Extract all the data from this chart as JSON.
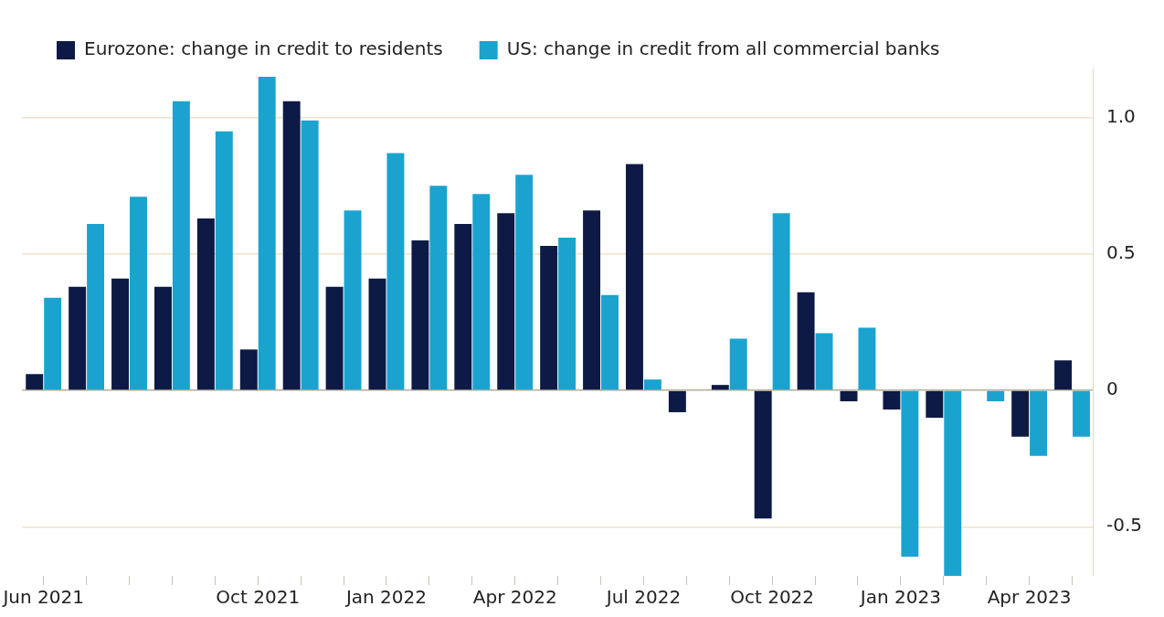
{
  "chart_data": {
    "type": "bar",
    "categories": [
      "Jun 2021",
      null,
      null,
      null,
      null,
      "Oct 2021",
      null,
      null,
      "Jan 2022",
      null,
      null,
      "Apr 2022",
      null,
      null,
      "Jul 2022",
      null,
      null,
      "Oct 2022",
      null,
      null,
      "Jan 2023",
      null,
      null,
      "Apr 2023",
      null
    ],
    "series": [
      {
        "name": "Eurozone: change in credit to residents",
        "color": "#0d1a45",
        "values": [
          0.06,
          0.38,
          0.41,
          0.38,
          0.63,
          0.15,
          1.06,
          0.38,
          0.41,
          0.55,
          0.61,
          0.65,
          0.53,
          0.66,
          0.83,
          -0.08,
          0.02,
          -0.47,
          0.36,
          -0.04,
          -0.07,
          -0.1,
          null,
          -0.17,
          0.11
        ]
      },
      {
        "name": "US: change in credit from all commercial banks",
        "color": "#1aa3cf",
        "values": [
          0.34,
          0.61,
          0.71,
          1.06,
          0.95,
          1.15,
          0.99,
          0.66,
          0.87,
          0.75,
          0.72,
          0.79,
          0.56,
          0.35,
          0.04,
          null,
          0.19,
          0.65,
          0.21,
          0.23,
          -0.61,
          -0.68,
          -0.04,
          -0.24,
          -0.17
        ]
      }
    ],
    "ylim": [
      -0.68,
      1.18
    ],
    "yticks": [
      {
        "value": -0.5,
        "label": "-0.5"
      },
      {
        "value": 0,
        "label": "0"
      },
      {
        "value": 0.5,
        "label": "0.5"
      },
      {
        "value": 1,
        "label": "1.0"
      }
    ],
    "grid": "y",
    "legend": "top left"
  }
}
